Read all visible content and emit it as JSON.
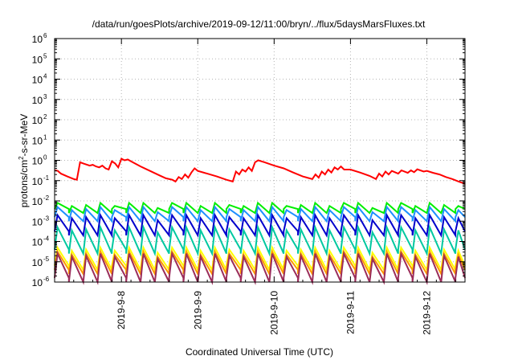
{
  "chart_data": {
    "type": "line",
    "title": "/data/run/goesPlots/archive/2019-09-12/11:00/bryn/../flux/5daysMarsFluxes.txt",
    "xlabel": "Coordinated Universal Time (UTC)",
    "ylabel_main": "protons/cm",
    "ylabel_sup": "2",
    "ylabel_rest": "-s-sr-MeV",
    "x_range_days": [
      "2019-09-07 03:00",
      "2019-09-12 12:00"
    ],
    "y_scale": "log",
    "ylim": [
      1e-06,
      1000000.0
    ],
    "grid": true,
    "x_ticks": [
      {
        "t": "2019-09-08",
        "label": "2019-9-8"
      },
      {
        "t": "2019-09-09",
        "label": "2019-9-9"
      },
      {
        "t": "2019-09-10",
        "label": "2019-9-10"
      },
      {
        "t": "2019-09-11",
        "label": "2019-9-11"
      },
      {
        "t": "2019-09-12",
        "label": "2019-9-12"
      }
    ],
    "y_ticks": [
      {
        "base": "10",
        "exp": "-6"
      },
      {
        "base": "10",
        "exp": "-5"
      },
      {
        "base": "10",
        "exp": "-4"
      },
      {
        "base": "10",
        "exp": "-3"
      },
      {
        "base": "10",
        "exp": "-2"
      },
      {
        "base": "10",
        "exp": "-1"
      },
      {
        "base": "10",
        "exp": "0"
      },
      {
        "base": "10",
        "exp": "1"
      },
      {
        "base": "10",
        "exp": "2"
      },
      {
        "base": "10",
        "exp": "3"
      },
      {
        "base": "10",
        "exp": "4"
      },
      {
        "base": "10",
        "exp": "5"
      },
      {
        "base": "10",
        "exp": "6"
      }
    ],
    "sawtooth_series": [
      {
        "color": "#00ee00",
        "high_log": -2.1,
        "low_log": -2.6
      },
      {
        "color": "#1e90ff",
        "high_log": -2.3,
        "low_log": -3.0
      },
      {
        "color": "#0000cc",
        "high_log": -2.7,
        "low_log": -3.7
      },
      {
        "color": "#00c8a0",
        "high_log": -3.3,
        "low_log": -4.6
      },
      {
        "color": "#ffff00",
        "high_log": -4.3,
        "low_log": -5.4
      },
      {
        "color": "#ff9900",
        "high_log": -4.5,
        "low_log": -5.6
      },
      {
        "color": "#9b2d5a",
        "high_log": -4.6,
        "low_log": -6.0
      }
    ],
    "red_series": {
      "color": "#ff0000",
      "points": [
        [
          "2019-09-07 03:00",
          0.33
        ],
        [
          "2019-09-07 04:00",
          0.3
        ],
        [
          "2019-09-07 05:00",
          0.22
        ],
        [
          "2019-09-07 07:00",
          0.16
        ],
        [
          "2019-09-07 09:00",
          0.12
        ],
        [
          "2019-09-07 10:00",
          0.11
        ],
        [
          "2019-09-07 11:00",
          0.8
        ],
        [
          "2019-09-07 12:00",
          0.7
        ],
        [
          "2019-09-07 14:00",
          0.55
        ],
        [
          "2019-09-07 15:00",
          0.6
        ],
        [
          "2019-09-07 16:00",
          0.5
        ],
        [
          "2019-09-07 17:00",
          0.45
        ],
        [
          "2019-09-07 18:00",
          0.55
        ],
        [
          "2019-09-07 19:00",
          0.4
        ],
        [
          "2019-09-07 20:00",
          0.35
        ],
        [
          "2019-09-07 21:00",
          0.9
        ],
        [
          "2019-09-07 22:00",
          0.7
        ],
        [
          "2019-09-07 23:00",
          0.45
        ],
        [
          "2019-09-08 00:00",
          1.2
        ],
        [
          "2019-09-08 01:00",
          1.0
        ],
        [
          "2019-09-08 02:00",
          1.1
        ],
        [
          "2019-09-08 03:00",
          0.9
        ],
        [
          "2019-09-08 06:00",
          0.5
        ],
        [
          "2019-09-08 09:00",
          0.3
        ],
        [
          "2019-09-08 12:00",
          0.18
        ],
        [
          "2019-09-08 14:00",
          0.13
        ],
        [
          "2019-09-08 16:00",
          0.11
        ],
        [
          "2019-09-08 17:00",
          0.09
        ],
        [
          "2019-09-08 18:00",
          0.15
        ],
        [
          "2019-09-08 19:00",
          0.12
        ],
        [
          "2019-09-08 20:00",
          0.2
        ],
        [
          "2019-09-08 21:00",
          0.14
        ],
        [
          "2019-09-08 22:00",
          0.25
        ],
        [
          "2019-09-08 23:00",
          0.4
        ],
        [
          "2019-09-09 00:00",
          0.3
        ],
        [
          "2019-09-09 03:00",
          0.22
        ],
        [
          "2019-09-09 06:00",
          0.16
        ],
        [
          "2019-09-09 09:00",
          0.11
        ],
        [
          "2019-09-09 11:00",
          0.09
        ],
        [
          "2019-09-09 12:00",
          0.28
        ],
        [
          "2019-09-09 13:00",
          0.2
        ],
        [
          "2019-09-09 14:00",
          0.35
        ],
        [
          "2019-09-09 15:00",
          0.28
        ],
        [
          "2019-09-09 16:00",
          0.45
        ],
        [
          "2019-09-09 17:00",
          0.3
        ],
        [
          "2019-09-09 18:00",
          0.8
        ],
        [
          "2019-09-09 19:00",
          1.0
        ],
        [
          "2019-09-09 21:00",
          0.8
        ],
        [
          "2019-09-10 00:00",
          0.55
        ],
        [
          "2019-09-10 03:00",
          0.4
        ],
        [
          "2019-09-10 06:00",
          0.25
        ],
        [
          "2019-09-10 09:00",
          0.16
        ],
        [
          "2019-09-10 12:00",
          0.12
        ],
        [
          "2019-09-10 13:00",
          0.2
        ],
        [
          "2019-09-10 14:00",
          0.14
        ],
        [
          "2019-09-10 15:00",
          0.28
        ],
        [
          "2019-09-10 16:00",
          0.2
        ],
        [
          "2019-09-10 17:00",
          0.35
        ],
        [
          "2019-09-10 18:00",
          0.25
        ],
        [
          "2019-09-10 19:00",
          0.45
        ],
        [
          "2019-09-10 20:00",
          0.35
        ],
        [
          "2019-09-10 21:00",
          0.5
        ],
        [
          "2019-09-10 22:00",
          0.35
        ],
        [
          "2019-09-11 00:00",
          0.35
        ],
        [
          "2019-09-11 03:00",
          0.25
        ],
        [
          "2019-09-11 06:00",
          0.17
        ],
        [
          "2019-09-11 08:00",
          0.12
        ],
        [
          "2019-09-11 09:00",
          0.22
        ],
        [
          "2019-09-11 10:00",
          0.16
        ],
        [
          "2019-09-11 11:00",
          0.28
        ],
        [
          "2019-09-11 12:00",
          0.2
        ],
        [
          "2019-09-11 13:00",
          0.3
        ],
        [
          "2019-09-11 15:00",
          0.22
        ],
        [
          "2019-09-11 16:00",
          0.32
        ],
        [
          "2019-09-11 18:00",
          0.24
        ],
        [
          "2019-09-11 19:00",
          0.32
        ],
        [
          "2019-09-11 20:00",
          0.26
        ],
        [
          "2019-09-11 21:00",
          0.36
        ],
        [
          "2019-09-11 23:00",
          0.28
        ],
        [
          "2019-09-12 00:00",
          0.3
        ],
        [
          "2019-09-12 02:00",
          0.24
        ],
        [
          "2019-09-12 04:00",
          0.2
        ],
        [
          "2019-09-12 06:00",
          0.15
        ],
        [
          "2019-09-12 08:00",
          0.12
        ],
        [
          "2019-09-12 10:00",
          0.09
        ],
        [
          "2019-09-12 12:00",
          0.07
        ]
      ]
    }
  }
}
